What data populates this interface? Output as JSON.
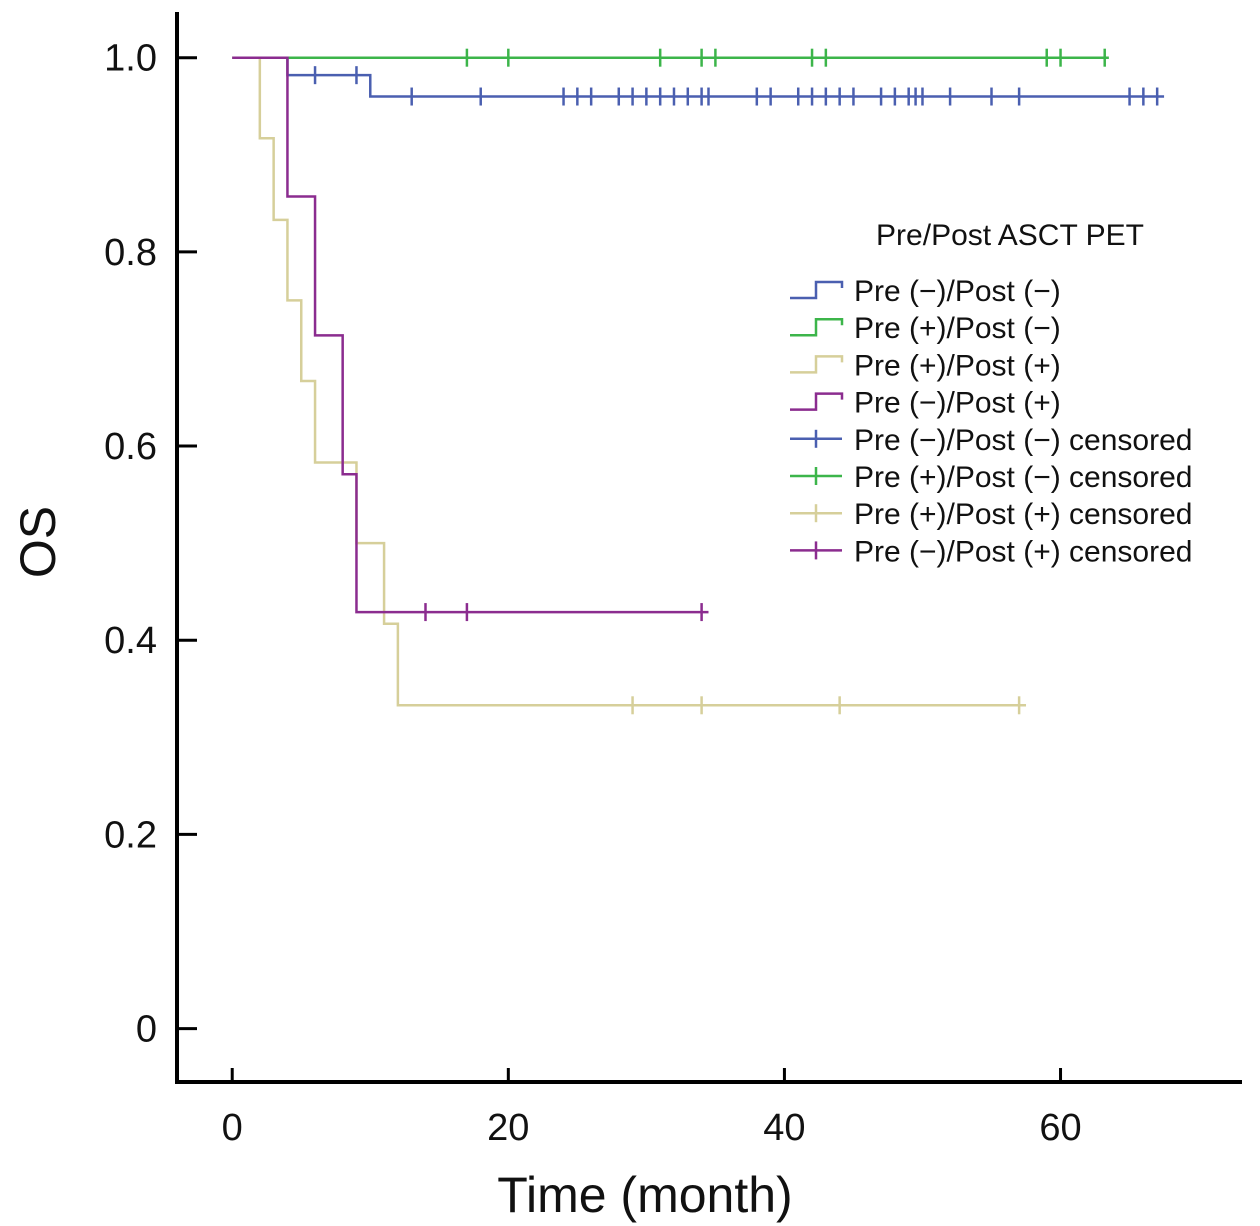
{
  "chart_data": {
    "type": "line",
    "step": true,
    "xlabel": "Time (month)",
    "ylabel": "OS",
    "xlim": [
      -4,
      73
    ],
    "ylim": [
      -0.055,
      1.045
    ],
    "xticks": [
      0,
      20,
      40,
      60
    ],
    "yticks": [
      0,
      0.2,
      0.4,
      0.6,
      0.8,
      1.0
    ],
    "xtick_labels": [
      "0",
      "20",
      "40",
      "60"
    ],
    "ytick_labels": [
      "0",
      "0.2",
      "0.4",
      "0.6",
      "0.8",
      "1.0"
    ],
    "grid": false,
    "legend_title": "Pre/Post ASCT PET",
    "legend_position": "right",
    "legend": [
      {
        "label": "Pre (−)/Post (−)",
        "kind": "line",
        "color": "#4a5fb0"
      },
      {
        "label": "Pre (+)/Post (−)",
        "kind": "line",
        "color": "#3cb54a"
      },
      {
        "label": "Pre (+)/Post (+)",
        "kind": "line",
        "color": "#d6cf9a"
      },
      {
        "label": "Pre (−)/Post (+)",
        "kind": "line",
        "color": "#8b2c8f"
      },
      {
        "label": "Pre (−)/Post (−) censored",
        "kind": "censor",
        "color": "#4a5fb0"
      },
      {
        "label": "Pre (+)/Post (−) censored",
        "kind": "censor",
        "color": "#3cb54a"
      },
      {
        "label": "Pre (+)/Post (+) censored",
        "kind": "censor",
        "color": "#d6cf9a"
      },
      {
        "label": "Pre (−)/Post (+) censored",
        "kind": "censor",
        "color": "#8b2c8f"
      }
    ],
    "series": [
      {
        "color": "#4a5fb0",
        "x": [
          0,
          4,
          10,
          67.5
        ],
        "y": [
          1.0,
          0.982,
          0.96,
          0.96
        ],
        "censored": [
          [
            6,
            0.982
          ],
          [
            9,
            0.982
          ],
          [
            13,
            0.96
          ],
          [
            18,
            0.96
          ],
          [
            24,
            0.96
          ],
          [
            25,
            0.96
          ],
          [
            26,
            0.96
          ],
          [
            28,
            0.96
          ],
          [
            29,
            0.96
          ],
          [
            30,
            0.96
          ],
          [
            31,
            0.96
          ],
          [
            32,
            0.96
          ],
          [
            33,
            0.96
          ],
          [
            34,
            0.96
          ],
          [
            34.5,
            0.96
          ],
          [
            38,
            0.96
          ],
          [
            39,
            0.96
          ],
          [
            41,
            0.96
          ],
          [
            42,
            0.96
          ],
          [
            43,
            0.96
          ],
          [
            44,
            0.96
          ],
          [
            45,
            0.96
          ],
          [
            47,
            0.96
          ],
          [
            48,
            0.96
          ],
          [
            49,
            0.96
          ],
          [
            49.5,
            0.96
          ],
          [
            50,
            0.96
          ],
          [
            52,
            0.96
          ],
          [
            55,
            0.96
          ],
          [
            57,
            0.96
          ],
          [
            65,
            0.96
          ],
          [
            66,
            0.96
          ],
          [
            67,
            0.96
          ]
        ]
      },
      {
        "color": "#3cb54a",
        "x": [
          0,
          63.5
        ],
        "y": [
          1.0,
          1.0
        ],
        "censored": [
          [
            17,
            1.0
          ],
          [
            20,
            1.0
          ],
          [
            31,
            1.0
          ],
          [
            34,
            1.0
          ],
          [
            35,
            1.0
          ],
          [
            42,
            1.0
          ],
          [
            43,
            1.0
          ],
          [
            59,
            1.0
          ],
          [
            60,
            1.0
          ],
          [
            63.2,
            1.0
          ]
        ]
      },
      {
        "color": "#d6cf9a",
        "x": [
          0,
          2,
          3,
          4,
          5,
          6,
          9,
          11,
          12,
          57.5
        ],
        "y": [
          1.0,
          0.917,
          0.833,
          0.75,
          0.667,
          0.583,
          0.5,
          0.417,
          0.333,
          0.333
        ],
        "censored": [
          [
            29,
            0.333
          ],
          [
            34,
            0.333
          ],
          [
            44,
            0.333
          ],
          [
            57,
            0.333
          ]
        ]
      },
      {
        "color": "#8b2c8f",
        "x": [
          0,
          4,
          6,
          8,
          9,
          34.5
        ],
        "y": [
          1.0,
          0.857,
          0.714,
          0.571,
          0.429,
          0.429
        ],
        "censored": [
          [
            14,
            0.429
          ],
          [
            17,
            0.429
          ],
          [
            34,
            0.429
          ]
        ]
      }
    ]
  }
}
